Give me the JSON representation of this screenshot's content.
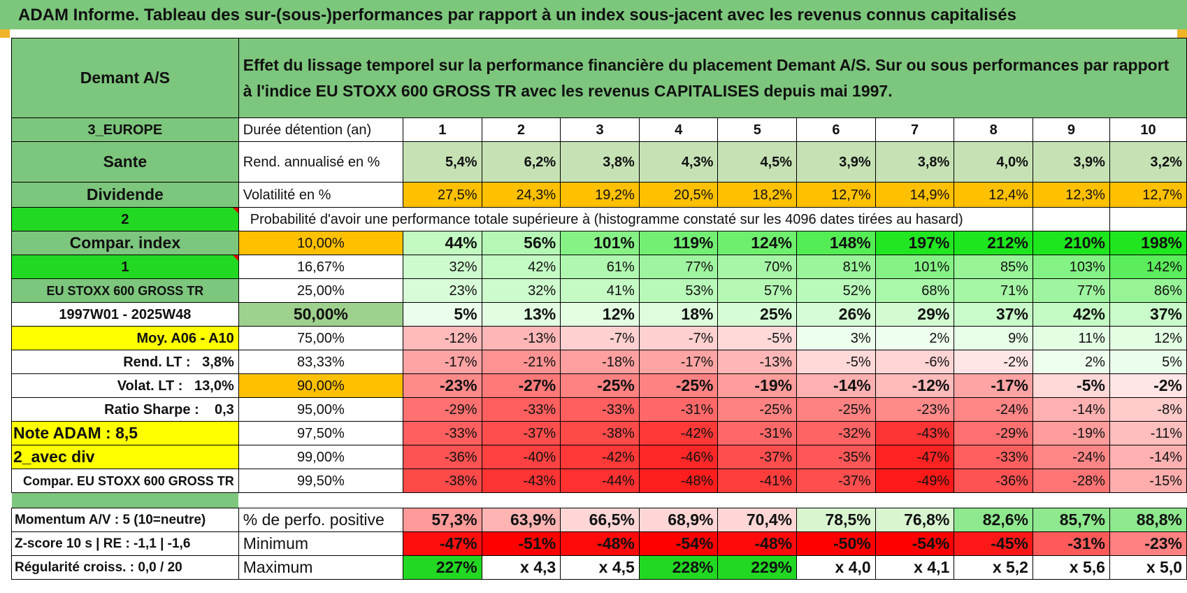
{
  "title": "ADAM Informe. Tableau des sur-(sous-)performances par rapport à un index sous-jacent avec les revenus connus capitalisés",
  "header": {
    "company": "Demant A/S",
    "description": "Effet du lissage temporel sur la performance financière du placement Demant A/S. Sur ou sous performances par rapport à l'indice EU STOXX 600 GROSS TR avec les revenus CAPITALISES depuis mai 1997."
  },
  "left": {
    "region": "3_EUROPE",
    "sector": "Sante",
    "type": "Dividende",
    "code2": "2",
    "compar_label": "Compar. index",
    "code1": "1",
    "index_name": "EU STOXX 600 GROSS TR",
    "period": "1997W01 - 2025W48",
    "moy": "Moy. A06 - A10",
    "rend_lt": "Rend. LT :   3,8%",
    "volat_lt": "Volat. LT :   13,0%",
    "sharpe": "Ratio Sharpe :    0,3",
    "note": "Note ADAM : 8,5",
    "avec_div": "2_avec div",
    "compar_full": "Compar. EU STOXX 600 GROSS TR"
  },
  "labels": {
    "duree": "Durée détention (an)",
    "rend": "Rend. annualisé en %",
    "vol": "Volatilité en %",
    "prob": "Probabilité d'avoir une performance totale supérieure à (histogramme constaté sur les 4096 dates tirées au hasard)"
  },
  "years": [
    "1",
    "2",
    "3",
    "4",
    "5",
    "6",
    "7",
    "8",
    "9",
    "10"
  ],
  "rend": [
    "5,4%",
    "6,2%",
    "3,8%",
    "4,3%",
    "4,5%",
    "3,9%",
    "3,8%",
    "4,0%",
    "3,9%",
    "3,2%"
  ],
  "vol": [
    "27,5%",
    "24,3%",
    "19,2%",
    "20,5%",
    "18,2%",
    "12,7%",
    "14,9%",
    "12,4%",
    "12,3%",
    "12,7%"
  ],
  "rows": [
    {
      "pct": "10,00%",
      "vals": [
        "44%",
        "56%",
        "101%",
        "119%",
        "124%",
        "148%",
        "197%",
        "212%",
        "210%",
        "198%"
      ]
    },
    {
      "pct": "16,67%",
      "vals": [
        "32%",
        "42%",
        "61%",
        "77%",
        "70%",
        "81%",
        "101%",
        "85%",
        "103%",
        "142%"
      ]
    },
    {
      "pct": "25,00%",
      "vals": [
        "23%",
        "32%",
        "41%",
        "53%",
        "57%",
        "52%",
        "68%",
        "71%",
        "77%",
        "86%"
      ]
    },
    {
      "pct": "50,00%",
      "vals": [
        "5%",
        "13%",
        "12%",
        "18%",
        "25%",
        "26%",
        "29%",
        "37%",
        "42%",
        "37%"
      ]
    },
    {
      "pct": "75,00%",
      "vals": [
        "-12%",
        "-13%",
        "-7%",
        "-7%",
        "-5%",
        "3%",
        "2%",
        "9%",
        "11%",
        "12%"
      ]
    },
    {
      "pct": "83,33%",
      "vals": [
        "-17%",
        "-21%",
        "-18%",
        "-17%",
        "-13%",
        "-5%",
        "-6%",
        "-2%",
        "2%",
        "5%"
      ]
    },
    {
      "pct": "90,00%",
      "vals": [
        "-23%",
        "-27%",
        "-25%",
        "-25%",
        "-19%",
        "-14%",
        "-12%",
        "-17%",
        "-5%",
        "-2%"
      ]
    },
    {
      "pct": "95,00%",
      "vals": [
        "-29%",
        "-33%",
        "-33%",
        "-31%",
        "-25%",
        "-25%",
        "-23%",
        "-24%",
        "-14%",
        "-8%"
      ]
    },
    {
      "pct": "97,50%",
      "vals": [
        "-33%",
        "-37%",
        "-38%",
        "-42%",
        "-31%",
        "-32%",
        "-43%",
        "-29%",
        "-19%",
        "-11%"
      ]
    },
    {
      "pct": "99,00%",
      "vals": [
        "-36%",
        "-40%",
        "-42%",
        "-46%",
        "-37%",
        "-35%",
        "-47%",
        "-33%",
        "-24%",
        "-14%"
      ]
    },
    {
      "pct": "99,50%",
      "vals": [
        "-38%",
        "-43%",
        "-44%",
        "-48%",
        "-41%",
        "-37%",
        "-49%",
        "-36%",
        "-28%",
        "-15%"
      ]
    }
  ],
  "bottom": {
    "momentum": "Momentum A/V : 5 (10=neutre)",
    "zscore": "Z-score 10 s | RE : -1,1 | -1,6",
    "regularite": "Régularité croiss. : 0,0 / 20",
    "pos_label": "% de perfo. positive",
    "min_label": "Minimum",
    "max_label": "Maximum",
    "pos": [
      "57,3%",
      "63,9%",
      "66,5%",
      "68,9%",
      "70,4%",
      "78,5%",
      "76,8%",
      "82,6%",
      "85,7%",
      "88,8%"
    ],
    "min": [
      "-47%",
      "-51%",
      "-48%",
      "-54%",
      "-48%",
      "-50%",
      "-54%",
      "-45%",
      "-31%",
      "-23%"
    ],
    "max": [
      "227%",
      "x 4,3",
      "x 4,5",
      "228%",
      "229%",
      "x 4,0",
      "x 4,1",
      "x 5,2",
      "x 5,6",
      "x 5,0"
    ]
  },
  "colors": {
    "header_green": "#7cc77c",
    "light_green": "#c6e2b5",
    "bright_green": "#22d822",
    "yellow": "#ffff00",
    "orange": "#ffc000",
    "red_text": "#e00000"
  }
}
